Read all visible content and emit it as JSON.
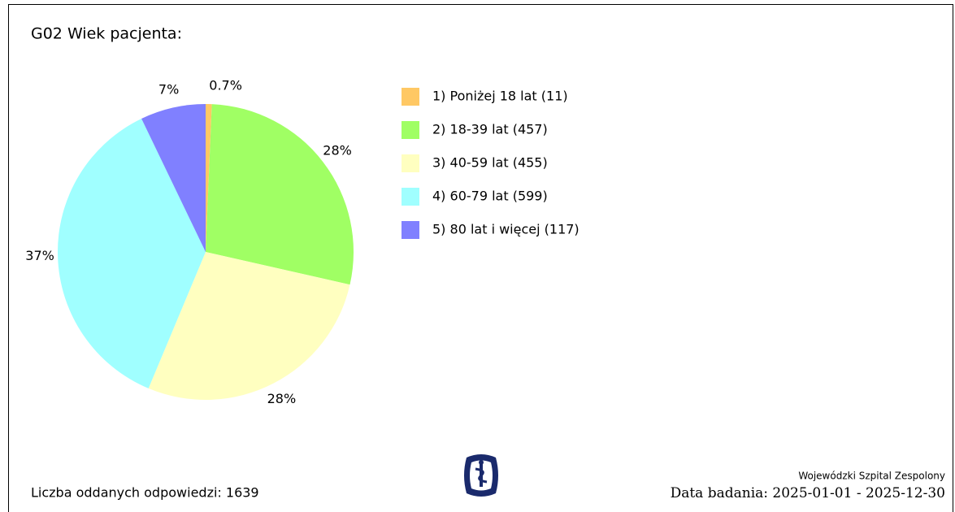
{
  "chart_data": {
    "type": "pie",
    "title": "G02 Wiek pacjenta:",
    "categories": [
      "1) Poniżej 18 lat (11)",
      "2) 18-39 lat (457)",
      "3) 40-59 lat (455)",
      "4) 60-79 lat (599)",
      "5) 80 lat i więcej (117)"
    ],
    "values": [
      0.67,
      27.88,
      27.76,
      36.55,
      7.14
    ],
    "value_labels": [
      "0.7%",
      "28%",
      "28%",
      "37%",
      "7%"
    ],
    "colors": [
      "#ffc864",
      "#a0ff64",
      "#ffffc0",
      "#a0ffff",
      "#8080ff"
    ],
    "legend": "right"
  },
  "footer": {
    "responses": "Liczba oddanych odpowiedzi: 1639",
    "hospital": "Wojewódzki Szpital Zespolony",
    "date_label": "Data badania:",
    "date_range": "2025-01-01 - 2025-12-30"
  }
}
